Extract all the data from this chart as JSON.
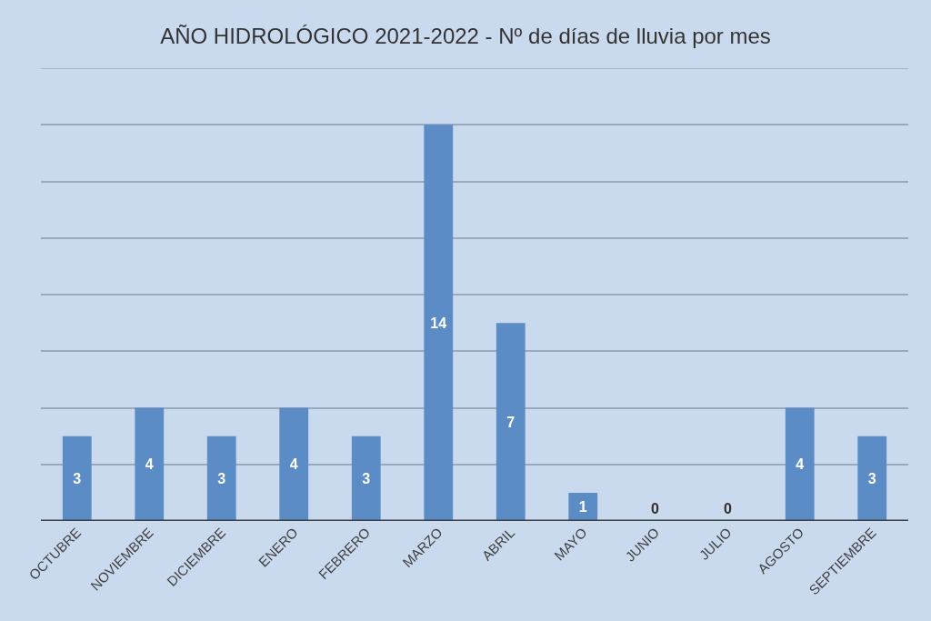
{
  "chart_data": {
    "type": "bar",
    "title": "AÑO HIDROLÓGICO 2021-2022 - Nº de días de lluvia por mes",
    "categories": [
      "OCTUBRE",
      "NOVIEMBRE",
      "DICIEMBRE",
      "ENERO",
      "FEBRERO",
      "MARZO",
      "ABRIL",
      "MAYO",
      "JUNIO",
      "JULIO",
      "AGOSTO",
      "SEPTIEMBRE"
    ],
    "values": [
      3,
      4,
      3,
      4,
      3,
      14,
      7,
      1,
      0,
      0,
      4,
      3
    ],
    "color": "#5b8cc6",
    "ylim": [
      0,
      16
    ],
    "yticks": [
      {
        "value": 0,
        "label": null
      },
      {
        "value": 2,
        "label": null
      },
      {
        "value": 4,
        "label": null
      },
      {
        "value": 6,
        "label": null
      },
      {
        "value": 8,
        "label": null
      },
      {
        "value": 10,
        "label": null
      },
      {
        "value": 12,
        "label": null
      },
      {
        "value": 14,
        "label": null
      },
      {
        "value": 16,
        "label": null
      }
    ],
    "grid": "y",
    "tick_labels": "x",
    "data_labels": true
  }
}
